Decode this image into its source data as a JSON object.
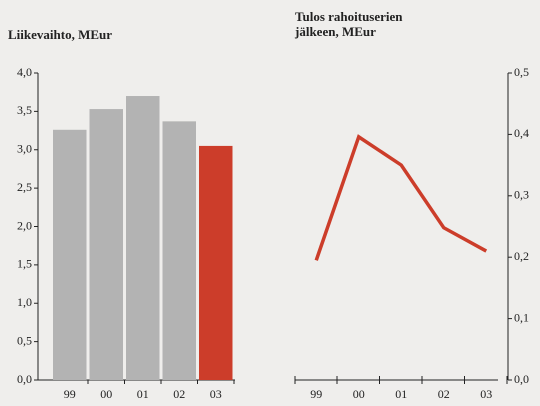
{
  "chart_data": [
    {
      "type": "bar",
      "title": "Liikevaihto, MEur",
      "categories": [
        "99",
        "00",
        "01",
        "02",
        "03"
      ],
      "values": [
        3.26,
        3.53,
        3.7,
        3.37,
        3.05
      ],
      "colors": [
        "#b3b3b3",
        "#b3b3b3",
        "#b3b3b3",
        "#b3b3b3",
        "#cc3d2a"
      ],
      "ylim": [
        0,
        4
      ],
      "yticks": [
        {
          "value": 0,
          "label": "0,0"
        },
        {
          "value": 0.5,
          "label": "0,5"
        },
        {
          "value": 1,
          "label": "1,0"
        },
        {
          "value": 1.5,
          "label": "1,5"
        },
        {
          "value": 2,
          "label": "2,0"
        },
        {
          "value": 2.5,
          "label": "2,5"
        },
        {
          "value": 3,
          "label": "3,0"
        },
        {
          "value": 3.5,
          "label": "3,5"
        },
        {
          "value": 4,
          "label": "4,0"
        }
      ]
    },
    {
      "type": "line",
      "title": [
        "Tulos rahoituserien",
        "jälkeen, MEur"
      ],
      "categories": [
        "99",
        "00",
        "01",
        "02",
        "03"
      ],
      "series": [
        {
          "color": "#cc3d2a",
          "axis": "y2",
          "values": [
            0.195,
            0.396,
            0.35,
            0.248,
            0.21
          ]
        }
      ],
      "y2lim": [
        0,
        0.5
      ],
      "y2ticks": [
        {
          "value": 0,
          "label": "0,0"
        },
        {
          "value": 0.1,
          "label": "0,1"
        },
        {
          "value": 0.2,
          "label": "0,2"
        },
        {
          "value": 0.3,
          "label": "0,3"
        },
        {
          "value": 0.4,
          "label": "0,4"
        },
        {
          "value": 0.5,
          "label": "0,5"
        }
      ]
    }
  ]
}
